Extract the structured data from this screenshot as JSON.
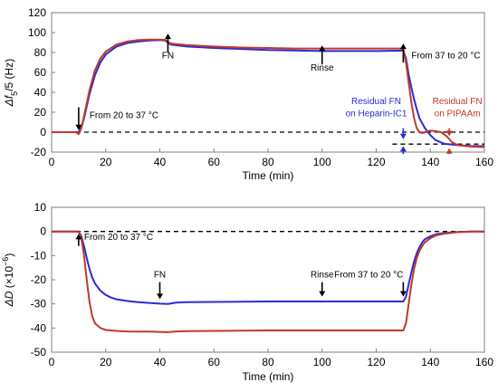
{
  "chart_data": [
    {
      "type": "line",
      "xlabel": "Time (min)",
      "ylabel": "Δf5/5 (Hz)",
      "ylabel_main": "Δf",
      "ylabel_sub": "5",
      "ylabel_rest": "/5 (Hz)",
      "xlim": [
        0,
        160
      ],
      "ylim": [
        -20,
        120
      ],
      "xticks": [
        0,
        20,
        40,
        60,
        80,
        100,
        120,
        140,
        160
      ],
      "yticks": [
        -20,
        0,
        20,
        40,
        60,
        80,
        100,
        120
      ],
      "xtick_labels": [
        "0",
        "20",
        "40",
        "60",
        "80",
        "100",
        "120",
        "140",
        "160"
      ],
      "ytick_labels": [
        "-20",
        "0",
        "20",
        "40",
        "60",
        "80",
        "100",
        "120"
      ],
      "baseline": 0,
      "series": [
        {
          "color": "#2b2bd4",
          "x": [
            0,
            9,
            10,
            11,
            12,
            14,
            16,
            18,
            20,
            24,
            28,
            32,
            36,
            40,
            42,
            44,
            50,
            60,
            70,
            80,
            90,
            100,
            110,
            120,
            128,
            130,
            131,
            132,
            133,
            134,
            135,
            136,
            138,
            140,
            142,
            145,
            150,
            155,
            160
          ],
          "y": [
            0,
            0,
            0,
            5,
            14,
            38,
            57,
            70,
            78,
            86,
            89.5,
            91,
            92,
            92.5,
            92,
            88,
            86,
            84.5,
            83.5,
            82.5,
            82,
            81.5,
            81.5,
            81.5,
            81.8,
            82,
            74,
            58,
            45,
            33,
            23,
            14,
            4,
            -3,
            -8,
            -11.5,
            -13,
            -14,
            -14
          ]
        },
        {
          "color": "#c0392b",
          "x": [
            0,
            9,
            10,
            11,
            12,
            14,
            16,
            18,
            20,
            24,
            28,
            32,
            36,
            40,
            42,
            44,
            50,
            60,
            70,
            80,
            90,
            100,
            110,
            120,
            128,
            130,
            131,
            132,
            133,
            134,
            135,
            136,
            137,
            138,
            140,
            142,
            144,
            146,
            148,
            150,
            155,
            160
          ],
          "y": [
            0,
            0,
            -2,
            4,
            16,
            42,
            62,
            74,
            81,
            88,
            91,
            92.5,
            93,
            93,
            92.5,
            89,
            87.5,
            86,
            85,
            84.5,
            84,
            84,
            84,
            84,
            84,
            84,
            70,
            50,
            30,
            14,
            4,
            0,
            -1,
            0,
            1.5,
            1,
            0,
            -4,
            -10,
            -13,
            -14.5,
            -15
          ]
        }
      ],
      "dashed_lines": [
        {
          "x": [
            0,
            160
          ],
          "y": [
            0,
            0
          ]
        },
        {
          "x": [
            126,
            160
          ],
          "y": [
            -12,
            -12
          ]
        }
      ],
      "annotations": [
        {
          "text": "From 20 to 37 °C",
          "arrow_x": 10,
          "arrow_from": 25,
          "arrow_to": 2,
          "text_x": 14,
          "text_y": 14,
          "color": "#000000",
          "anchor": "start"
        },
        {
          "text": "FN",
          "arrow_x": 43,
          "arrow_from": 80,
          "arrow_to": 99,
          "text_x": 43,
          "text_y": 74,
          "color": "#000000",
          "anchor": "middle"
        },
        {
          "text": "Rinse",
          "arrow_x": 100,
          "arrow_from": 68,
          "arrow_to": 87,
          "text_x": 100,
          "text_y": 62,
          "color": "#000000",
          "anchor": "middle"
        },
        {
          "text": "From 37 to 20 °C",
          "arrow_x": 130,
          "arrow_from": 70,
          "arrow_to": 89,
          "text_x": 133,
          "text_y": 74,
          "color": "#000000",
          "anchor": "start"
        }
      ],
      "residual_labels": [
        {
          "lines": [
            "Residual FN",
            "on Heparin-IC1"
          ],
          "text_x": 120,
          "text_y": [
            28,
            16
          ],
          "color": "#2b2bd4",
          "anchor": "middle",
          "arrow_x": 130,
          "down_from": 4,
          "down_to": -7,
          "up_from": -22,
          "up_to": -14
        },
        {
          "lines": [
            "Residual FN",
            "on PIPAAm"
          ],
          "text_x": 150,
          "text_y": [
            28,
            16
          ],
          "color": "#c0392b",
          "anchor": "middle",
          "arrow_x": 147,
          "down_from": 4,
          "down_to": -4,
          "up_from": -22,
          "up_to": -16
        }
      ]
    },
    {
      "type": "line",
      "xlabel": "Time (min)",
      "ylabel": "ΔD (×10−6)",
      "ylabel_main": "ΔD",
      "ylabel_rest": " (×10",
      "ylabel_sup": "−6",
      "ylabel_end": ")",
      "xlim": [
        0,
        160
      ],
      "ylim": [
        -50,
        10
      ],
      "xticks": [
        0,
        20,
        40,
        60,
        80,
        100,
        120,
        140,
        160
      ],
      "yticks": [
        -50,
        -40,
        -30,
        -20,
        -10,
        0,
        10
      ],
      "xtick_labels": [
        "0",
        "20",
        "40",
        "60",
        "80",
        "100",
        "120",
        "140",
        "160"
      ],
      "ytick_labels": [
        "-50",
        "-40",
        "-30",
        "-20",
        "-10",
        "0",
        "10"
      ],
      "baseline": 0,
      "series": [
        {
          "color": "#2b2bd4",
          "x": [
            0,
            9,
            10,
            11,
            12,
            13,
            14,
            15,
            16,
            18,
            20,
            22,
            24,
            28,
            32,
            36,
            40,
            43,
            46,
            50,
            60,
            70,
            80,
            90,
            100,
            110,
            120,
            128,
            130,
            131,
            132,
            133,
            134,
            135,
            136,
            137,
            138,
            140,
            142,
            145,
            150,
            155,
            160
          ],
          "y": [
            0,
            0,
            0,
            -2,
            -6,
            -11,
            -15.5,
            -19,
            -21.5,
            -24.5,
            -26.3,
            -27.4,
            -28.1,
            -28.8,
            -29.3,
            -29.6,
            -29.9,
            -30,
            -29.5,
            -29.3,
            -29.2,
            -29.1,
            -29,
            -29,
            -29,
            -29,
            -29,
            -29,
            -29,
            -27,
            -22,
            -17,
            -12.5,
            -9,
            -6.5,
            -4.5,
            -3.2,
            -2,
            -1.2,
            -0.6,
            -0.2,
            0,
            0
          ]
        },
        {
          "color": "#c0392b",
          "x": [
            0,
            9,
            10,
            11,
            12,
            13,
            14,
            15,
            16,
            18,
            20,
            24,
            28,
            32,
            36,
            40,
            43,
            46,
            50,
            60,
            70,
            80,
            90,
            100,
            110,
            120,
            128,
            130,
            131,
            132,
            133,
            134,
            135,
            136,
            137,
            138,
            140,
            142,
            145,
            150,
            155,
            160
          ],
          "y": [
            0,
            0,
            0,
            -3,
            -10,
            -20,
            -29,
            -35,
            -38,
            -40,
            -40.8,
            -41.2,
            -41.4,
            -41.5,
            -41.5,
            -41.6,
            -41.7,
            -41.4,
            -41.3,
            -41.2,
            -41.1,
            -41,
            -41,
            -41,
            -41,
            -41,
            -41,
            -41,
            -38,
            -30,
            -22,
            -15.5,
            -11,
            -8,
            -6,
            -4.5,
            -2.8,
            -1.7,
            -0.9,
            -0.3,
            0,
            0
          ]
        }
      ],
      "dashed_lines": [
        {
          "x": [
            0,
            160
          ],
          "y": [
            0,
            0
          ]
        }
      ],
      "annotations": [
        {
          "text": "From 20 to 37 °C",
          "arrow_x": 10,
          "arrow_from": -6,
          "arrow_to": -1,
          "text_x": 12,
          "text_y": -3.5,
          "color": "#000000",
          "anchor": "start"
        },
        {
          "text": "FN",
          "arrow_x": 40,
          "arrow_from": -21,
          "arrow_to": -28,
          "text_x": 40,
          "text_y": -19,
          "color": "#000000",
          "anchor": "middle"
        },
        {
          "text": "Rinse",
          "arrow_x": 100,
          "arrow_from": -21,
          "arrow_to": -27,
          "text_x": 100,
          "text_y": -19,
          "color": "#000000",
          "anchor": "middle"
        },
        {
          "text": "From 37 to 20 °C",
          "arrow_x": 130,
          "arrow_from": -21,
          "arrow_to": -27,
          "text_x": 130,
          "text_y": -19,
          "color": "#000000",
          "anchor": "end"
        }
      ],
      "residual_labels": []
    }
  ]
}
